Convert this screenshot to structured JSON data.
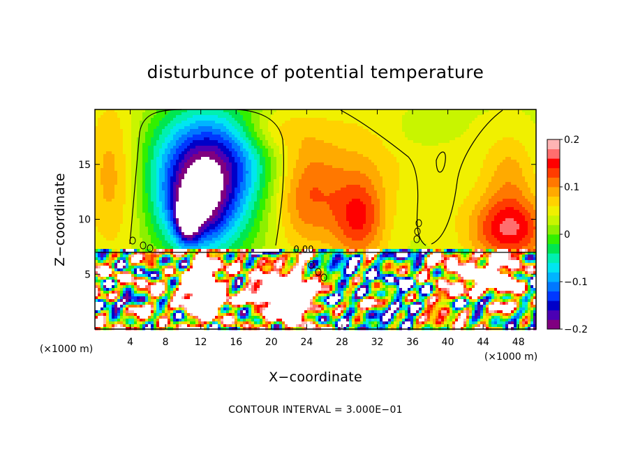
{
  "chart_data": {
    "type": "heatmap",
    "title": "disturbunce of potential temperature",
    "xlabel": "X−coordinate",
    "ylabel": "Z−coordinate",
    "x_unit_label": "(×1000 m)",
    "x_unit_label_right": "(×1000 m)",
    "xlim": [
      0,
      50
    ],
    "ylim": [
      0,
      20
    ],
    "x_ticks": [
      4,
      8,
      12,
      16,
      20,
      24,
      28,
      32,
      36,
      40,
      44,
      48
    ],
    "y_ticks": [
      5,
      10,
      15
    ],
    "colorbar": {
      "range": [
        -0.2,
        0.2
      ],
      "ticks": [
        {
          "value": 0.2,
          "label": "0.2"
        },
        {
          "value": 0.1,
          "label": "0.1"
        },
        {
          "value": 0.0,
          "label": "0"
        },
        {
          "value": -0.1,
          "label": "−0.1"
        },
        {
          "value": -0.2,
          "label": "−0.2"
        }
      ],
      "colors": [
        "#800080",
        "#4b00b4",
        "#0000c8",
        "#0038ff",
        "#0078ff",
        "#00b4ff",
        "#00e6f0",
        "#00f0b0",
        "#00e650",
        "#32f000",
        "#8cf000",
        "#c8f500",
        "#f0f000",
        "#ffd200",
        "#ffaa00",
        "#ff7800",
        "#ff3c00",
        "#ff0000",
        "#ff6e6e",
        "#ffb4b4"
      ]
    },
    "contour_label": "0.00",
    "contour_interval_text": "CONTOUR INTERVAL = 3.000E−01",
    "features": [
      {
        "cx": 12.5,
        "cz": 13.5,
        "rx": 6,
        "rz": 6.5,
        "v": -0.18
      },
      {
        "cx": 11.5,
        "cz": 11,
        "rx": 3.5,
        "rz": 3.5,
        "v": -0.1
      },
      {
        "cx": 10.5,
        "cz": 10,
        "rx": 1.2,
        "rz": 2,
        "v": -0.15
      },
      {
        "cx": 14,
        "cz": 15.5,
        "rx": 7,
        "rz": 4,
        "v": -0.06
      },
      {
        "cx": 2,
        "cz": 14,
        "rx": 3,
        "rz": 7,
        "v": 0.06
      },
      {
        "cx": 24,
        "cz": 12,
        "rx": 4,
        "rz": 5,
        "v": 0.08
      },
      {
        "cx": 30,
        "cz": 10,
        "rx": 3,
        "rz": 4,
        "v": 0.1
      },
      {
        "cx": 30,
        "cz": 16,
        "rx": 8,
        "rz": 5,
        "v": 0.03
      },
      {
        "cx": 40,
        "cz": 14,
        "rx": 5,
        "rz": 6,
        "v": 0.01
      },
      {
        "cx": 37,
        "cz": 18,
        "rx": 4,
        "rz": 2,
        "v": -0.02
      },
      {
        "cx": 47,
        "cz": 9,
        "rx": 4.5,
        "rz": 3,
        "v": 0.12
      },
      {
        "cx": 47,
        "cz": 14,
        "rx": 3,
        "rz": 4,
        "v": 0.05
      },
      {
        "cx": 20,
        "cz": 18,
        "rx": 4,
        "rz": 2,
        "v": 0.04
      }
    ]
  }
}
